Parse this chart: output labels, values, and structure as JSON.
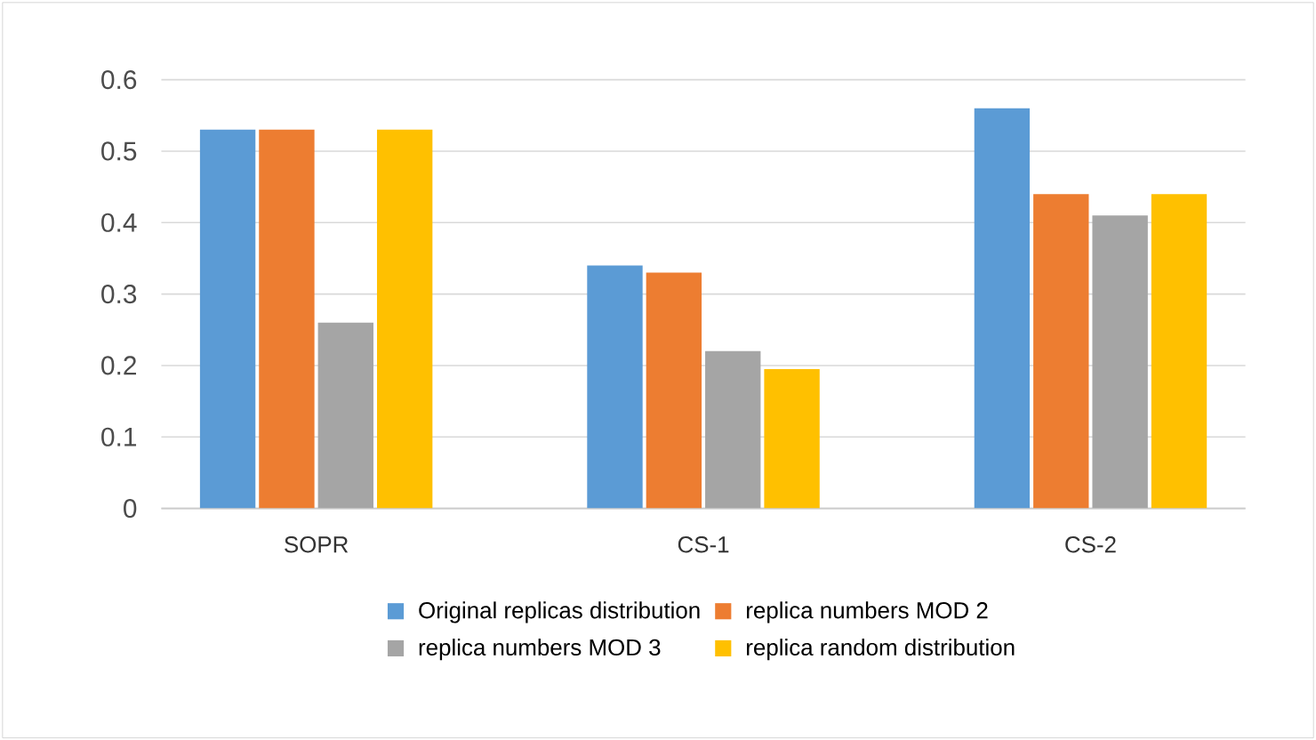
{
  "chart_data": {
    "type": "bar",
    "categories": [
      "SOPR",
      "CS-1",
      "CS-2"
    ],
    "series": [
      {
        "name": "Original replicas distribution",
        "color": "#5b9bd5",
        "values": [
          0.53,
          0.34,
          0.56
        ]
      },
      {
        "name": "replica numbers MOD 2",
        "color": "#ed7d31",
        "values": [
          0.53,
          0.33,
          0.44
        ]
      },
      {
        "name": "replica numbers MOD 3",
        "color": "#a5a5a5",
        "values": [
          0.26,
          0.22,
          0.41
        ]
      },
      {
        "name": "replica random distribution",
        "color": "#ffc000",
        "values": [
          0.53,
          0.195,
          0.44
        ]
      }
    ],
    "ylim": [
      0,
      0.6
    ],
    "yticks": [
      0,
      0.1,
      0.2,
      0.3,
      0.4,
      0.5,
      0.6
    ],
    "grid": "y",
    "legend": "bottom"
  }
}
